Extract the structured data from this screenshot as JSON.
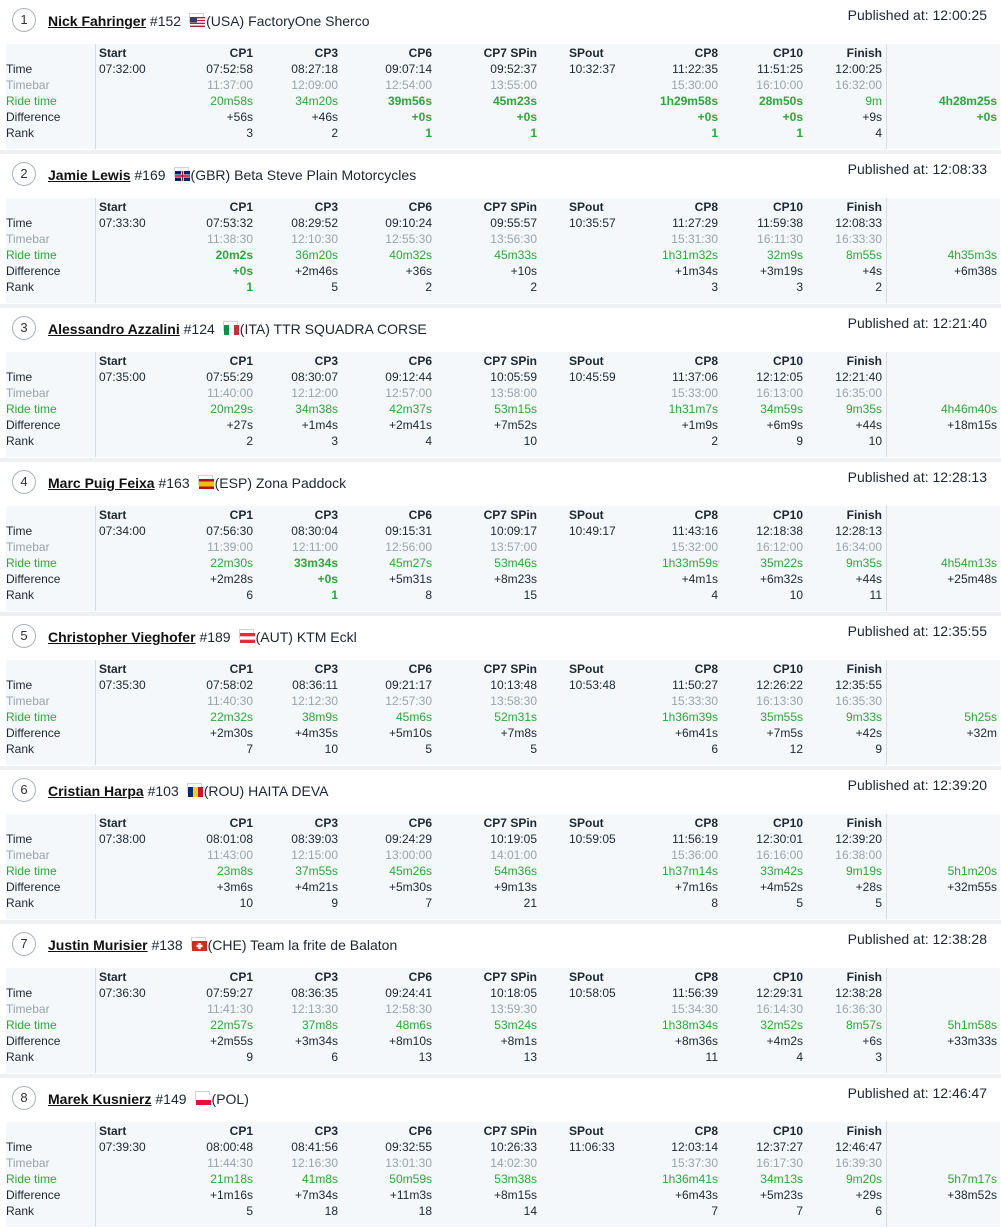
{
  "published_prefix": "Published at: ",
  "row_labels": {
    "time": "Time",
    "timebar": "Timebar",
    "ride_time": "Ride time",
    "difference": "Difference",
    "rank": "Rank"
  },
  "columns": [
    "Start",
    "CP1",
    "CP3",
    "CP6",
    "CP7 SPin",
    "SPout",
    "CP8",
    "CP10",
    "Finish"
  ],
  "colors": {
    "green": "#2ea63a",
    "grey": "#9aa3ab",
    "text": "#1d2733"
  },
  "riders": [
    {
      "pos": "1",
      "name": "Nick Fahringer",
      "number": "#152",
      "flag_icon": "usa-flag-icon",
      "country": "(USA)",
      "team": "FactoryOne Sherco",
      "published": "12:00:25",
      "time": [
        "07:32:00",
        "07:52:58",
        "08:27:18",
        "09:07:14",
        "09:52:37",
        "10:32:37",
        "11:22:35",
        "11:51:25",
        "12:00:25"
      ],
      "timebar": [
        "",
        "11:37:00",
        "12:09:00",
        "12:54:00",
        "13:55:00",
        "",
        "15:30:00",
        "16:10:00",
        "16:32:00"
      ],
      "ride_time": [
        "",
        "20m58s",
        "34m20s",
        "39m56s",
        "45m23s",
        "",
        "1h29m58s",
        "28m50s",
        "9m",
        "4h28m25s"
      ],
      "difference": [
        "",
        "+56s",
        "+46s",
        "+0s",
        "+0s",
        "",
        "+0s",
        "+0s",
        "+9s",
        "+0s"
      ],
      "rank": [
        "",
        "3",
        "2",
        "1",
        "1",
        "",
        "1",
        "1",
        "4",
        ""
      ],
      "best_ride": [
        false,
        false,
        false,
        true,
        true,
        false,
        true,
        true,
        false,
        true
      ],
      "best_diff": [
        false,
        false,
        false,
        true,
        true,
        false,
        true,
        true,
        false,
        true
      ],
      "best_rank": [
        false,
        false,
        false,
        true,
        true,
        false,
        true,
        true,
        false,
        false
      ]
    },
    {
      "pos": "2",
      "name": "Jamie Lewis",
      "number": "#169",
      "flag_icon": "gbr-flag-icon",
      "country": "(GBR)",
      "team": "Beta Steve Plain Motorcycles",
      "published": "12:08:33",
      "time": [
        "07:33:30",
        "07:53:32",
        "08:29:52",
        "09:10:24",
        "09:55:57",
        "10:35:57",
        "11:27:29",
        "11:59:38",
        "12:08:33"
      ],
      "timebar": [
        "",
        "11:38:30",
        "12:10:30",
        "12:55:30",
        "13:56:30",
        "",
        "15:31:30",
        "16:11:30",
        "16:33:30"
      ],
      "ride_time": [
        "",
        "20m2s",
        "36m20s",
        "40m32s",
        "45m33s",
        "",
        "1h31m32s",
        "32m9s",
        "8m55s",
        "4h35m3s"
      ],
      "difference": [
        "",
        "+0s",
        "+2m46s",
        "+36s",
        "+10s",
        "",
        "+1m34s",
        "+3m19s",
        "+4s",
        "+6m38s"
      ],
      "rank": [
        "",
        "1",
        "5",
        "2",
        "2",
        "",
        "3",
        "3",
        "2",
        ""
      ],
      "best_ride": [
        false,
        true,
        false,
        false,
        false,
        false,
        false,
        false,
        false,
        false
      ],
      "best_diff": [
        false,
        true,
        false,
        false,
        false,
        false,
        false,
        false,
        false,
        false
      ],
      "best_rank": [
        false,
        true,
        false,
        false,
        false,
        false,
        false,
        false,
        false,
        false
      ]
    },
    {
      "pos": "3",
      "name": "Alessandro Azzalini",
      "number": "#124",
      "flag_icon": "ita-flag-icon",
      "country": "(ITA)",
      "team": "TTR SQUADRA CORSE",
      "published": "12:21:40",
      "time": [
        "07:35:00",
        "07:55:29",
        "08:30:07",
        "09:12:44",
        "10:05:59",
        "10:45:59",
        "11:37:06",
        "12:12:05",
        "12:21:40"
      ],
      "timebar": [
        "",
        "11:40:00",
        "12:12:00",
        "12:57:00",
        "13:58:00",
        "",
        "15:33:00",
        "16:13:00",
        "16:35:00"
      ],
      "ride_time": [
        "",
        "20m29s",
        "34m38s",
        "42m37s",
        "53m15s",
        "",
        "1h31m7s",
        "34m59s",
        "9m35s",
        "4h46m40s"
      ],
      "difference": [
        "",
        "+27s",
        "+1m4s",
        "+2m41s",
        "+7m52s",
        "",
        "+1m9s",
        "+6m9s",
        "+44s",
        "+18m15s"
      ],
      "rank": [
        "",
        "2",
        "3",
        "4",
        "10",
        "",
        "2",
        "9",
        "10",
        ""
      ],
      "best_ride": [
        false,
        false,
        false,
        false,
        false,
        false,
        false,
        false,
        false,
        false
      ],
      "best_diff": [
        false,
        false,
        false,
        false,
        false,
        false,
        false,
        false,
        false,
        false
      ],
      "best_rank": [
        false,
        false,
        false,
        false,
        false,
        false,
        false,
        false,
        false,
        false
      ]
    },
    {
      "pos": "4",
      "name": "Marc Puig Feixa",
      "number": "#163",
      "flag_icon": "esp-flag-icon",
      "country": "(ESP)",
      "team": "Zona Paddock",
      "published": "12:28:13",
      "time": [
        "07:34:00",
        "07:56:30",
        "08:30:04",
        "09:15:31",
        "10:09:17",
        "10:49:17",
        "11:43:16",
        "12:18:38",
        "12:28:13"
      ],
      "timebar": [
        "",
        "11:39:00",
        "12:11:00",
        "12:56:00",
        "13:57:00",
        "",
        "15:32:00",
        "16:12:00",
        "16:34:00"
      ],
      "ride_time": [
        "",
        "22m30s",
        "33m34s",
        "45m27s",
        "53m46s",
        "",
        "1h33m59s",
        "35m22s",
        "9m35s",
        "4h54m13s"
      ],
      "difference": [
        "",
        "+2m28s",
        "+0s",
        "+5m31s",
        "+8m23s",
        "",
        "+4m1s",
        "+6m32s",
        "+44s",
        "+25m48s"
      ],
      "rank": [
        "",
        "6",
        "1",
        "8",
        "15",
        "",
        "4",
        "10",
        "11",
        ""
      ],
      "best_ride": [
        false,
        false,
        true,
        false,
        false,
        false,
        false,
        false,
        false,
        false
      ],
      "best_diff": [
        false,
        false,
        true,
        false,
        false,
        false,
        false,
        false,
        false,
        false
      ],
      "best_rank": [
        false,
        false,
        true,
        false,
        false,
        false,
        false,
        false,
        false,
        false
      ]
    },
    {
      "pos": "5",
      "name": "Christopher Vieghofer",
      "number": "#189",
      "flag_icon": "aut-flag-icon",
      "country": "(AUT)",
      "team": "KTM Eckl",
      "published": "12:35:55",
      "time": [
        "07:35:30",
        "07:58:02",
        "08:36:11",
        "09:21:17",
        "10:13:48",
        "10:53:48",
        "11:50:27",
        "12:26:22",
        "12:35:55"
      ],
      "timebar": [
        "",
        "11:40:30",
        "12:12:30",
        "12:57:30",
        "13:58:30",
        "",
        "15:33:30",
        "16:13:30",
        "16:35:30"
      ],
      "ride_time": [
        "",
        "22m32s",
        "38m9s",
        "45m6s",
        "52m31s",
        "",
        "1h36m39s",
        "35m55s",
        "9m33s",
        "5h25s"
      ],
      "difference": [
        "",
        "+2m30s",
        "+4m35s",
        "+5m10s",
        "+7m8s",
        "",
        "+6m41s",
        "+7m5s",
        "+42s",
        "+32m"
      ],
      "rank": [
        "",
        "7",
        "10",
        "5",
        "5",
        "",
        "6",
        "12",
        "9",
        ""
      ],
      "best_ride": [
        false,
        false,
        false,
        false,
        false,
        false,
        false,
        false,
        false,
        false
      ],
      "best_diff": [
        false,
        false,
        false,
        false,
        false,
        false,
        false,
        false,
        false,
        false
      ],
      "best_rank": [
        false,
        false,
        false,
        false,
        false,
        false,
        false,
        false,
        false,
        false
      ]
    },
    {
      "pos": "6",
      "name": "Cristian Harpa",
      "number": "#103",
      "flag_icon": "rou-flag-icon",
      "country": "(ROU)",
      "team": "HAITA DEVA",
      "published": "12:39:20",
      "time": [
        "07:38:00",
        "08:01:08",
        "08:39:03",
        "09:24:29",
        "10:19:05",
        "10:59:05",
        "11:56:19",
        "12:30:01",
        "12:39:20"
      ],
      "timebar": [
        "",
        "11:43:00",
        "12:15:00",
        "13:00:00",
        "14:01:00",
        "",
        "15:36:00",
        "16:16:00",
        "16:38:00"
      ],
      "ride_time": [
        "",
        "23m8s",
        "37m55s",
        "45m26s",
        "54m36s",
        "",
        "1h37m14s",
        "33m42s",
        "9m19s",
        "5h1m20s"
      ],
      "difference": [
        "",
        "+3m6s",
        "+4m21s",
        "+5m30s",
        "+9m13s",
        "",
        "+7m16s",
        "+4m52s",
        "+28s",
        "+32m55s"
      ],
      "rank": [
        "",
        "10",
        "9",
        "7",
        "21",
        "",
        "8",
        "5",
        "5",
        ""
      ],
      "best_ride": [
        false,
        false,
        false,
        false,
        false,
        false,
        false,
        false,
        false,
        false
      ],
      "best_diff": [
        false,
        false,
        false,
        false,
        false,
        false,
        false,
        false,
        false,
        false
      ],
      "best_rank": [
        false,
        false,
        false,
        false,
        false,
        false,
        false,
        false,
        false,
        false
      ]
    },
    {
      "pos": "7",
      "name": "Justin Murisier",
      "number": "#138",
      "flag_icon": "che-flag-icon",
      "country": "(CHE)",
      "team": "Team la frite de Balaton",
      "published": "12:38:28",
      "time": [
        "07:36:30",
        "07:59:27",
        "08:36:35",
        "09:24:41",
        "10:18:05",
        "10:58:05",
        "11:56:39",
        "12:29:31",
        "12:38:28"
      ],
      "timebar": [
        "",
        "11:41:30",
        "12:13:30",
        "12:58:30",
        "13:59:30",
        "",
        "15:34:30",
        "16:14:30",
        "16:36:30"
      ],
      "ride_time": [
        "",
        "22m57s",
        "37m8s",
        "48m6s",
        "53m24s",
        "",
        "1h38m34s",
        "32m52s",
        "8m57s",
        "5h1m58s"
      ],
      "difference": [
        "",
        "+2m55s",
        "+3m34s",
        "+8m10s",
        "+8m1s",
        "",
        "+8m36s",
        "+4m2s",
        "+6s",
        "+33m33s"
      ],
      "rank": [
        "",
        "9",
        "6",
        "13",
        "13",
        "",
        "11",
        "4",
        "3",
        ""
      ],
      "best_ride": [
        false,
        false,
        false,
        false,
        false,
        false,
        false,
        false,
        false,
        false
      ],
      "best_diff": [
        false,
        false,
        false,
        false,
        false,
        false,
        false,
        false,
        false,
        false
      ],
      "best_rank": [
        false,
        false,
        false,
        false,
        false,
        false,
        false,
        false,
        false,
        false
      ]
    },
    {
      "pos": "8",
      "name": "Marek Kusnierz",
      "number": "#149",
      "flag_icon": "pol-flag-icon",
      "country": "(POL)",
      "team": "",
      "published": "12:46:47",
      "time": [
        "07:39:30",
        "08:00:48",
        "08:41:56",
        "09:32:55",
        "10:26:33",
        "11:06:33",
        "12:03:14",
        "12:37:27",
        "12:46:47"
      ],
      "timebar": [
        "",
        "11:44:30",
        "12:16:30",
        "13:01:30",
        "14:02:30",
        "",
        "15:37:30",
        "16:17:30",
        "16:39:30"
      ],
      "ride_time": [
        "",
        "21m18s",
        "41m8s",
        "50m59s",
        "53m38s",
        "",
        "1h36m41s",
        "34m13s",
        "9m20s",
        "5h7m17s"
      ],
      "difference": [
        "",
        "+1m16s",
        "+7m34s",
        "+11m3s",
        "+8m15s",
        "",
        "+6m43s",
        "+5m23s",
        "+29s",
        "+38m52s"
      ],
      "rank": [
        "",
        "5",
        "18",
        "18",
        "14",
        "",
        "7",
        "7",
        "6",
        ""
      ],
      "best_ride": [
        false,
        false,
        false,
        false,
        false,
        false,
        false,
        false,
        false,
        false
      ],
      "best_diff": [
        false,
        false,
        false,
        false,
        false,
        false,
        false,
        false,
        false,
        false
      ],
      "best_rank": [
        false,
        false,
        false,
        false,
        false,
        false,
        false,
        false,
        false,
        false
      ]
    }
  ]
}
